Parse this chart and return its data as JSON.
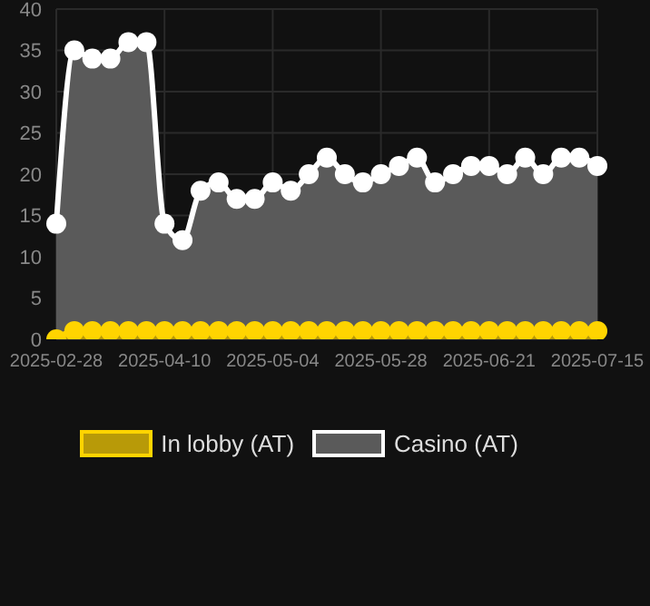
{
  "chart_data": {
    "type": "area",
    "categories": [
      "2025-02-28",
      null,
      null,
      null,
      null,
      null,
      "2025-04-10",
      null,
      null,
      null,
      null,
      null,
      "2025-05-04",
      null,
      null,
      null,
      null,
      null,
      "2025-05-28",
      null,
      null,
      null,
      null,
      null,
      "2025-06-21",
      null,
      null,
      null,
      null,
      null,
      "2025-07-15"
    ],
    "series": [
      {
        "name": "In lobby (AT)",
        "color": "#ffd400",
        "values": [
          0,
          1,
          1,
          1,
          1,
          1,
          1,
          1,
          1,
          1,
          1,
          1,
          1,
          1,
          1,
          1,
          1,
          1,
          1,
          1,
          1,
          1,
          1,
          1,
          1,
          1,
          1,
          1,
          1,
          1,
          1
        ]
      },
      {
        "name": "Casino (AT)",
        "color": "#ffffff",
        "values": [
          14,
          35,
          34,
          34,
          36,
          36,
          14,
          12,
          18,
          19,
          17,
          17,
          19,
          18,
          20,
          22,
          20,
          19,
          20,
          21,
          22,
          19,
          20,
          21,
          21,
          20,
          22,
          20,
          22,
          22,
          21
        ]
      }
    ],
    "ylim": [
      0,
      40
    ],
    "yticks": [
      0,
      5,
      10,
      15,
      20,
      25,
      30,
      35,
      40
    ],
    "grid": true,
    "legend": "bottom",
    "marker": "circle"
  }
}
